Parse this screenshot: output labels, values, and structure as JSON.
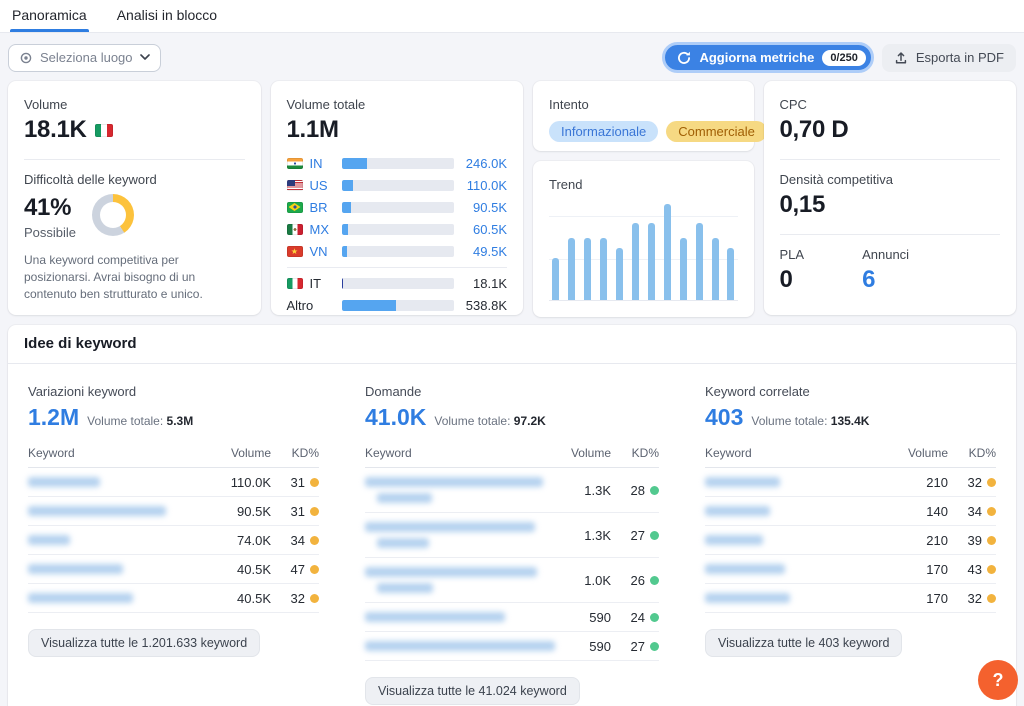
{
  "tabs": [
    {
      "label": "Panoramica",
      "active": true
    },
    {
      "label": "Analisi in blocco",
      "active": false
    }
  ],
  "toolbar": {
    "location_select": {
      "label": "Seleziona luogo"
    },
    "update_button": {
      "label": "Aggiorna metriche",
      "counter": "0/250"
    },
    "export_button": {
      "label": "Esporta in PDF"
    }
  },
  "colors": {
    "accent_blue": "#2f7de1",
    "bar_blue": "#55a5f0",
    "bar_dark": "#2b3f9e",
    "kd_yellow": "#f2b33e",
    "kd_green": "#52c98f",
    "help_orange": "#f4612e"
  },
  "cards": {
    "volume": {
      "label": "Volume",
      "value": "18.1K",
      "flag": "it",
      "kd": {
        "label": "Difficoltà delle keyword",
        "value": "41%",
        "percent": 41,
        "level": "Possibile",
        "description": "Una keyword competitiva per posizionarsi. Avrai bisogno di un contenuto ben strutturato e unico."
      }
    },
    "total_volume": {
      "label": "Volume totale",
      "value": "1.1M",
      "countries": [
        {
          "flag": "in",
          "code": "IN",
          "value": "246.0K",
          "pct": 22.4,
          "link": true,
          "dark": false,
          "divider_before": false
        },
        {
          "flag": "us",
          "code": "US",
          "value": "110.0K",
          "pct": 10.0,
          "link": true,
          "dark": false,
          "divider_before": false
        },
        {
          "flag": "br",
          "code": "BR",
          "value": "90.5K",
          "pct": 8.2,
          "link": true,
          "dark": false,
          "divider_before": false
        },
        {
          "flag": "mx",
          "code": "MX",
          "value": "60.5K",
          "pct": 5.5,
          "link": true,
          "dark": false,
          "divider_before": false
        },
        {
          "flag": "vn",
          "code": "VN",
          "value": "49.5K",
          "pct": 4.5,
          "link": true,
          "dark": false,
          "divider_before": false
        },
        {
          "flag": "it",
          "code": "IT",
          "value": "18.1K",
          "pct": 1.7,
          "link": false,
          "dark": true,
          "divider_before": true
        },
        {
          "flag": null,
          "code": "Altro",
          "value": "538.8K",
          "pct": 48.9,
          "link": false,
          "dark": false,
          "divider_before": false
        }
      ]
    },
    "intent": {
      "label": "Intento",
      "badges": [
        {
          "label": "Informazionale",
          "type": "informational"
        },
        {
          "label": "Commerciale",
          "type": "commercial"
        }
      ]
    },
    "trend": {
      "label": "Trend"
    },
    "cpc": {
      "label": "CPC",
      "value": "0,70 D",
      "density_label": "Densità competitiva",
      "density_value": "0,15",
      "pla_label": "PLA",
      "pla_value": "0",
      "ads_label": "Annunci",
      "ads_value": "6"
    }
  },
  "chart_data": {
    "type": "bar",
    "title": "Trend",
    "categories": [],
    "values": [
      44,
      65,
      65,
      65,
      54,
      80,
      80,
      100,
      65,
      80,
      65,
      54
    ],
    "unit": "relative-height-percent",
    "xlabel": "",
    "ylabel": "",
    "grid": true,
    "bar_color": "#89c0ec"
  },
  "keyword_ideas": {
    "title": "Idee di keyword",
    "columns": [
      {
        "label": "Variazioni keyword",
        "count": "1.2M",
        "total_label": "Volume totale:",
        "total": "5.3M",
        "headers": [
          "Keyword",
          "Volume",
          "KD%"
        ],
        "rows": [
          {
            "keyword_blur": [
              72
            ],
            "volume": "110.0K",
            "kd": "31",
            "dot": "yellow"
          },
          {
            "keyword_blur": [
              138
            ],
            "volume": "90.5K",
            "kd": "31",
            "dot": "yellow"
          },
          {
            "keyword_blur": [
              42
            ],
            "volume": "74.0K",
            "kd": "34",
            "dot": "yellow"
          },
          {
            "keyword_blur": [
              95
            ],
            "volume": "40.5K",
            "kd": "47",
            "dot": "yellow"
          },
          {
            "keyword_blur": [
              105
            ],
            "volume": "40.5K",
            "kd": "32",
            "dot": "yellow"
          }
        ],
        "view_all": "Visualizza tutte le 1.201.633 keyword"
      },
      {
        "label": "Domande",
        "count": "41.0K",
        "total_label": "Volume totale:",
        "total": "97.2K",
        "headers": [
          "Keyword",
          "Volume",
          "KD%"
        ],
        "rows": [
          {
            "keyword_blur": [
              178,
              55
            ],
            "volume": "1.3K",
            "kd": "28",
            "dot": "green"
          },
          {
            "keyword_blur": [
              170,
              52
            ],
            "volume": "1.3K",
            "kd": "27",
            "dot": "green"
          },
          {
            "keyword_blur": [
              172,
              56
            ],
            "volume": "1.0K",
            "kd": "26",
            "dot": "green"
          },
          {
            "keyword_blur": [
              140
            ],
            "volume": "590",
            "kd": "24",
            "dot": "green"
          },
          {
            "keyword_blur": [
              190
            ],
            "volume": "590",
            "kd": "27",
            "dot": "green"
          }
        ],
        "view_all": "Visualizza tutte le 41.024 keyword"
      },
      {
        "label": "Keyword correlate",
        "count": "403",
        "total_label": "Volume totale:",
        "total": "135.4K",
        "headers": [
          "Keyword",
          "Volume",
          "KD%"
        ],
        "rows": [
          {
            "keyword_blur": [
              75
            ],
            "volume": "210",
            "kd": "32",
            "dot": "yellow"
          },
          {
            "keyword_blur": [
              65
            ],
            "volume": "140",
            "kd": "34",
            "dot": "yellow"
          },
          {
            "keyword_blur": [
              58
            ],
            "volume": "210",
            "kd": "39",
            "dot": "yellow"
          },
          {
            "keyword_blur": [
              80
            ],
            "volume": "170",
            "kd": "43",
            "dot": "yellow"
          },
          {
            "keyword_blur": [
              85
            ],
            "volume": "170",
            "kd": "32",
            "dot": "yellow"
          }
        ],
        "view_all": "Visualizza tutte le 403 keyword"
      }
    ]
  },
  "help_button": {
    "label": "?"
  }
}
